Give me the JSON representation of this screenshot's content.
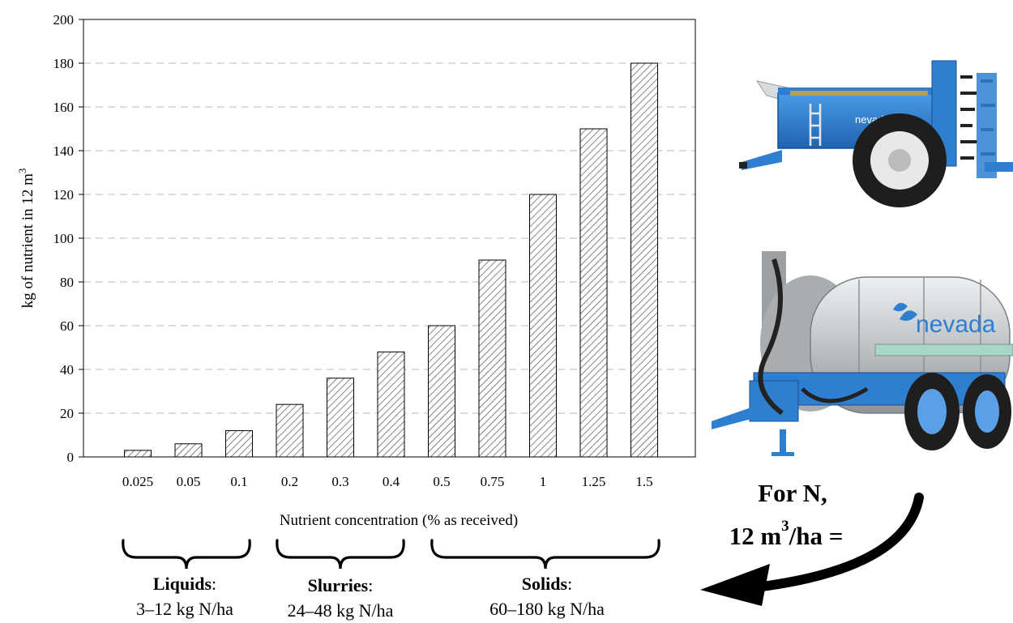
{
  "chart_data": {
    "type": "bar",
    "title": "",
    "xlabel": "Nutrient concentration (% as received)",
    "ylabel_main": "kg of nutrient in 12 m",
    "ylabel_superscript": "3",
    "categories": [
      "0.025",
      "0.05",
      "0.1",
      "0.2",
      "0.3",
      "0.4",
      "0.5",
      "0.75",
      "1",
      "1.25",
      "1.5"
    ],
    "values": [
      3,
      6,
      12,
      24,
      36,
      48,
      60,
      90,
      120,
      150,
      180
    ],
    "ylim": [
      0,
      200
    ],
    "yticks": [
      "0",
      "20",
      "40",
      "60",
      "80",
      "100",
      "120",
      "140",
      "160",
      "180",
      "200"
    ],
    "grid": "horizontal dashed",
    "bar_fill": "diagonal hatch"
  },
  "groups": [
    {
      "name": "Liquids",
      "colon": ":",
      "range": "3–12 kg N/ha"
    },
    {
      "name": "Slurries",
      "colon": ":",
      "range": "24–48 kg N/ha"
    },
    {
      "name": "Solids",
      "colon": ":",
      "range": "60–180 kg N/ha"
    }
  ],
  "callout": {
    "line1": "For N,",
    "line2_prefix": "12 m",
    "line2_sup": "3",
    "line2_suffix": "/ha ="
  },
  "photos": {
    "spreader_brand": "nevada",
    "tanker_brand": "nevada"
  },
  "colors": {
    "machine_blue": "#2f7fd0",
    "tank_silver": "#c9ccd0",
    "tire_black": "#1e1e1e",
    "hatch": "#444444",
    "grid": "#bbbbbb"
  }
}
